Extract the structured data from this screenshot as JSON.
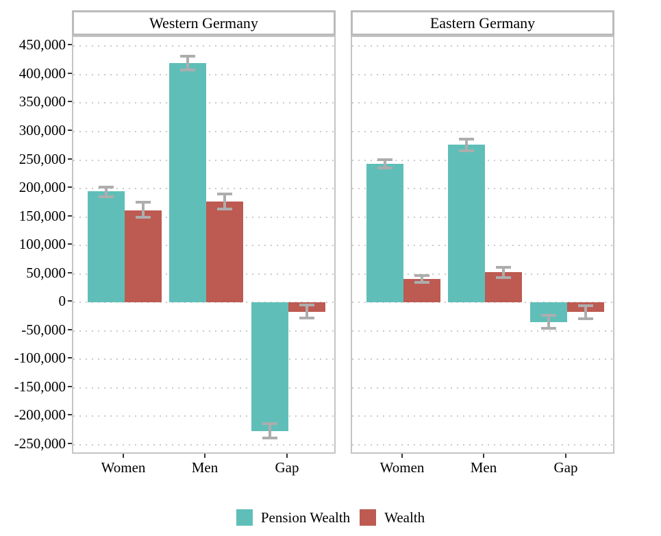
{
  "colors": {
    "pension_wealth": "#5FBFB8",
    "wealth": "#BD5A52",
    "error_bar": "#ADADAD",
    "gridline": "#C9C9C9",
    "panel_border": "#C4C4C4",
    "strip_border": "#BBBBBB",
    "tick": "#333333",
    "text": "#000000"
  },
  "chart_data": {
    "type": "bar",
    "categories": [
      "Women",
      "Men",
      "Gap"
    ],
    "y_axis": {
      "min": -268000,
      "max": 466000,
      "ticks": [
        450000,
        400000,
        350000,
        300000,
        250000,
        200000,
        150000,
        100000,
        50000,
        0,
        -50000,
        -100000,
        -150000,
        -200000,
        -250000
      ],
      "tick_labels": [
        "450,000",
        "400,000",
        "350,000",
        "300,000",
        "250,000",
        "200,000",
        "150,000",
        "100,000",
        "50,000",
        "0",
        "-50,000",
        "-100,000",
        "-150,000",
        "-200,000",
        "-250,000"
      ],
      "grid": "dotted-horizontal"
    },
    "panels": [
      {
        "title": "Western Germany",
        "series": [
          {
            "key": "pension_wealth",
            "name": "Pension Wealth",
            "values": [
              195000,
              420000,
              -226000
            ],
            "ci_low": [
              186000,
              408000,
              -238000
            ],
            "ci_high": [
              203000,
              432000,
              -213000
            ]
          },
          {
            "key": "wealth",
            "name": "Wealth",
            "values": [
              161000,
              177000,
              -16000
            ],
            "ci_low": [
              149000,
              164000,
              -27000
            ],
            "ci_high": [
              176000,
              191000,
              -5000
            ]
          }
        ]
      },
      {
        "title": "Eastern Germany",
        "series": [
          {
            "key": "pension_wealth",
            "name": "Pension Wealth",
            "values": [
              243000,
              277000,
              -34000
            ],
            "ci_low": [
              236000,
              266000,
              -45000
            ],
            "ci_high": [
              251000,
              287000,
              -23000
            ]
          },
          {
            "key": "wealth",
            "name": "Wealth",
            "values": [
              41000,
              53000,
              -17000
            ],
            "ci_low": [
              35000,
              44000,
              -28000
            ],
            "ci_high": [
              47000,
              62000,
              -6000
            ]
          }
        ]
      }
    ],
    "legend": [
      {
        "key": "pension_wealth",
        "label": "Pension Wealth"
      },
      {
        "key": "wealth",
        "label": "Wealth"
      }
    ],
    "legend_position": "bottom-center",
    "error_bars": true
  }
}
